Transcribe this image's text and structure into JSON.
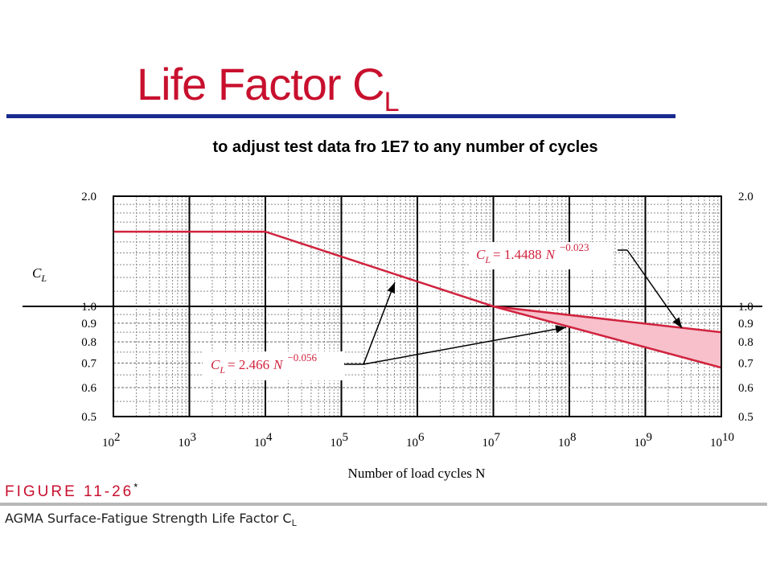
{
  "slide": {
    "title": "Life Factor C",
    "title_sub": "L",
    "subtitle": "to adjust test data fro 1E7 to any number of cycles"
  },
  "figure": {
    "label": "FIGURE 11-26",
    "label_mark": "*",
    "caption": "AGMA Surface-Fatigue Strength Life Factor C",
    "caption_sub": "L"
  },
  "chart_data": {
    "type": "line",
    "xlabel": "Number of load cycles N",
    "ylabel": "C",
    "ylabel_sub": "L",
    "xscale": "log",
    "yscale": "log",
    "xlim": [
      100,
      10000000000
    ],
    "ylim": [
      0.5,
      2.0
    ],
    "x_ticks": [
      {
        "base": "10",
        "exp": "2"
      },
      {
        "base": "10",
        "exp": "3"
      },
      {
        "base": "10",
        "exp": "4"
      },
      {
        "base": "10",
        "exp": "5"
      },
      {
        "base": "10",
        "exp": "6"
      },
      {
        "base": "10",
        "exp": "7"
      },
      {
        "base": "10",
        "exp": "8"
      },
      {
        "base": "10",
        "exp": "9"
      },
      {
        "base": "10",
        "exp": "10"
      }
    ],
    "y_ticks": [
      "2.0",
      "1.0",
      "0.9",
      "0.8",
      "0.7",
      "0.6",
      "0.5"
    ],
    "grid": true,
    "series": [
      {
        "name": "upper",
        "x": [
          100,
          10000,
          10000000,
          10000000000
        ],
        "y": [
          1.6,
          1.6,
          1.0,
          0.85
        ],
        "color": "#d0233e"
      },
      {
        "name": "lower",
        "x": [
          10000000,
          10000000000
        ],
        "y": [
          1.0,
          0.68
        ],
        "color": "#d0233e"
      }
    ],
    "shaded_region_color": "#f7c0cb",
    "annotations": [
      {
        "lhs": "C",
        "lhs_sub": "L",
        "rhs": "= 1.4488",
        "var": "N",
        "exp": "−0.023"
      },
      {
        "lhs": "C",
        "lhs_sub": "L",
        "rhs": "= 2.466",
        "var": "N",
        "exp": "−0.056"
      }
    ]
  }
}
